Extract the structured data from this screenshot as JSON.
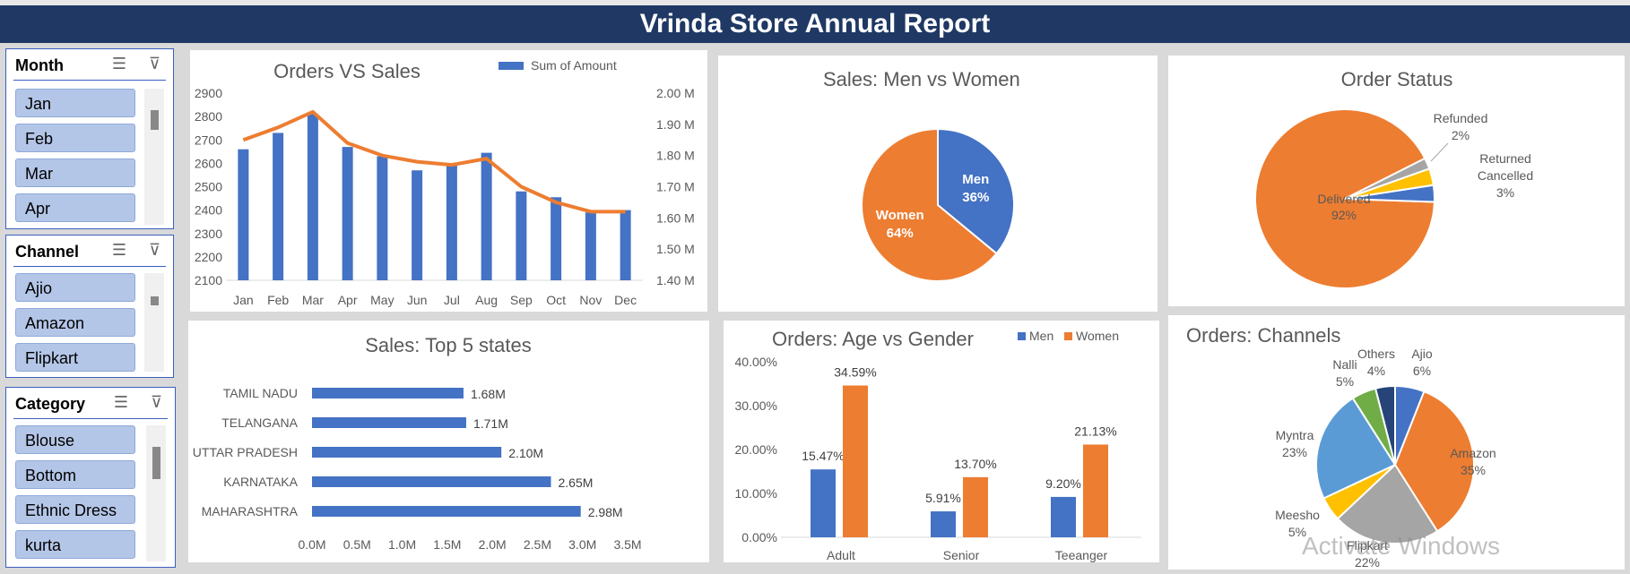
{
  "report": {
    "title": "Vrinda Store Annual Report"
  },
  "slicers": {
    "month": {
      "title": "Month",
      "items": [
        "Jan",
        "Feb",
        "Mar",
        "Apr"
      ]
    },
    "channel": {
      "title": "Channel",
      "items": [
        "Ajio",
        "Amazon",
        "Flipkart"
      ]
    },
    "category": {
      "title": "Category",
      "items": [
        "Blouse",
        "Bottom",
        "Ethnic Dress",
        "kurta"
      ]
    }
  },
  "watermark": "Activate Windows",
  "colors": {
    "blue": "#4472c4",
    "orange": "#ed7d31",
    "gray": "#a5a5a5",
    "yellow": "#ffc000",
    "lightblue": "#5b9bd5",
    "green": "#70ad47",
    "navy": "#264478",
    "header": "#1f3864"
  },
  "chart_data": [
    {
      "id": "orders_vs_sales",
      "type": "bar+line",
      "title": "Orders VS Sales",
      "categories": [
        "Jan",
        "Feb",
        "Mar",
        "Apr",
        "May",
        "Jun",
        "Jul",
        "Aug",
        "Sep",
        "Oct",
        "Nov",
        "Dec"
      ],
      "series": [
        {
          "name": "Sum of Amount",
          "type": "bar",
          "axis": "left",
          "values": [
            2660,
            2730,
            2810,
            2670,
            2630,
            2570,
            2595,
            2645,
            2480,
            2455,
            2390,
            2400
          ]
        },
        {
          "type": "line",
          "axis": "right",
          "values": [
            1.85,
            1.89,
            1.94,
            1.84,
            1.8,
            1.78,
            1.77,
            1.79,
            1.7,
            1.65,
            1.62,
            1.62
          ]
        }
      ],
      "left_ticks": [
        "2900",
        "2800",
        "2700",
        "2600",
        "2500",
        "2400",
        "2300",
        "2200",
        "2100"
      ],
      "right_ticks": [
        "2.00 M",
        "1.90 M",
        "1.80 M",
        "1.70 M",
        "1.60 M",
        "1.50 M",
        "1.40 M"
      ],
      "ylim_left": [
        2100,
        2900
      ],
      "ylim_right": [
        1.4,
        2.0
      ]
    },
    {
      "id": "men_vs_women",
      "type": "pie",
      "title": "Sales: Men vs Women",
      "slices": [
        {
          "label": "Men",
          "value": 36,
          "pct": "36%"
        },
        {
          "label": "Women",
          "value": 64,
          "pct": "64%"
        }
      ]
    },
    {
      "id": "order_status",
      "type": "pie",
      "title": "Order Status",
      "slices": [
        {
          "label": "Delivered",
          "value": 92,
          "pct": "92%"
        },
        {
          "label": "Refunded",
          "value": 2,
          "pct": "2%"
        },
        {
          "label": "Returned",
          "value": 3,
          "pct": ""
        },
        {
          "label": "Cancelled",
          "value": 3,
          "pct": "3%"
        }
      ]
    },
    {
      "id": "top5_states",
      "type": "bar",
      "orientation": "horizontal",
      "title": "Sales: Top 5 states",
      "categories": [
        "TAMIL NADU",
        "TELANGANA",
        "UTTAR PRADESH",
        "KARNATAKA",
        "MAHARASHTRA"
      ],
      "values": [
        1.68,
        1.71,
        2.1,
        2.65,
        2.98
      ],
      "value_labels": [
        "1.68M",
        "1.71M",
        "2.10M",
        "2.65M",
        "2.98M"
      ],
      "x_ticks": [
        "0.0M",
        "0.5M",
        "1.0M",
        "1.5M",
        "2.0M",
        "2.5M",
        "3.0M",
        "3.5M"
      ],
      "xlim": [
        0,
        3.5
      ]
    },
    {
      "id": "age_vs_gender",
      "type": "bar",
      "title": "Orders: Age vs Gender",
      "categories": [
        "Adult",
        "Senior",
        "Teeanger"
      ],
      "series": [
        {
          "name": "Men",
          "values": [
            15.47,
            5.91,
            9.2
          ],
          "labels": [
            "15.47%",
            "5.91%",
            "9.20%"
          ]
        },
        {
          "name": "Women",
          "values": [
            34.59,
            13.7,
            21.13
          ],
          "labels": [
            "34.59%",
            "13.70%",
            "21.13%"
          ]
        }
      ],
      "y_ticks": [
        "40.00%",
        "30.00%",
        "20.00%",
        "10.00%",
        "0.00%"
      ],
      "ylim": [
        0,
        40
      ]
    },
    {
      "id": "channels",
      "type": "pie",
      "title": "Orders: Channels",
      "slices": [
        {
          "label": "Ajio",
          "value": 6,
          "pct": "6%"
        },
        {
          "label": "Amazon",
          "value": 35,
          "pct": "35%"
        },
        {
          "label": "Flipkart",
          "value": 22,
          "pct": "22%"
        },
        {
          "label": "Meesho",
          "value": 5,
          "pct": "5%"
        },
        {
          "label": "Myntra",
          "value": 23,
          "pct": "23%"
        },
        {
          "label": "Nalli",
          "value": 5,
          "pct": "5%"
        },
        {
          "label": "Others",
          "value": 4,
          "pct": "4%"
        }
      ]
    }
  ]
}
